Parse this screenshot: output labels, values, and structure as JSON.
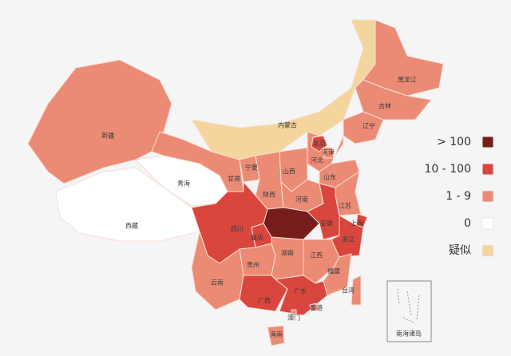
{
  "legend": {
    "items": [
      {
        "label": "> 100",
        "color": "#761c1c"
      },
      {
        "label": "10 - 100",
        "color": "#d9463d"
      },
      {
        "label": "1 - 9",
        "color": "#ec8b75"
      },
      {
        "label": "0",
        "color": "#ffffff"
      },
      {
        "label": "疑似",
        "color": "#f3d59d"
      }
    ]
  },
  "regions": [
    {
      "label": "新疆",
      "level": 2
    },
    {
      "label": "西藏",
      "level": 3
    },
    {
      "label": "青海",
      "level": 3
    },
    {
      "label": "甘肃",
      "level": 2
    },
    {
      "label": "内蒙古",
      "level": 4
    },
    {
      "label": "黑龙江",
      "level": 2
    },
    {
      "label": "吉林",
      "level": 2
    },
    {
      "label": "辽宁",
      "level": 2
    },
    {
      "label": "北京",
      "level": 1
    },
    {
      "label": "天津",
      "level": 2
    },
    {
      "label": "河北",
      "level": 2
    },
    {
      "label": "山西",
      "level": 2
    },
    {
      "label": "山东",
      "level": 2
    },
    {
      "label": "宁夏",
      "level": 2
    },
    {
      "label": "陕西",
      "level": 2
    },
    {
      "label": "河南",
      "level": 2
    },
    {
      "label": null,
      "level": 0
    },
    {
      "label": "四川",
      "level": 1
    },
    {
      "label": "重庆",
      "level": 1
    },
    {
      "label": "安徽",
      "level": 1
    },
    {
      "label": "江苏",
      "level": 2
    },
    {
      "label": "上海",
      "level": 1
    },
    {
      "label": "浙江",
      "level": 1
    },
    {
      "label": "贵州",
      "level": 2
    },
    {
      "label": "云南",
      "level": 2
    },
    {
      "label": "湖南",
      "level": 2
    },
    {
      "label": "江西",
      "level": 2
    },
    {
      "label": "福建",
      "level": 2
    },
    {
      "label": "广西",
      "level": 1
    },
    {
      "label": "广东",
      "level": 1
    },
    {
      "label": "香港",
      "level": 2
    },
    {
      "label": "澳门",
      "level": 2
    },
    {
      "label": "台湾",
      "level": 2
    },
    {
      "label": "海南",
      "level": 2
    }
  ],
  "inset": {
    "label": "南海诸岛"
  }
}
